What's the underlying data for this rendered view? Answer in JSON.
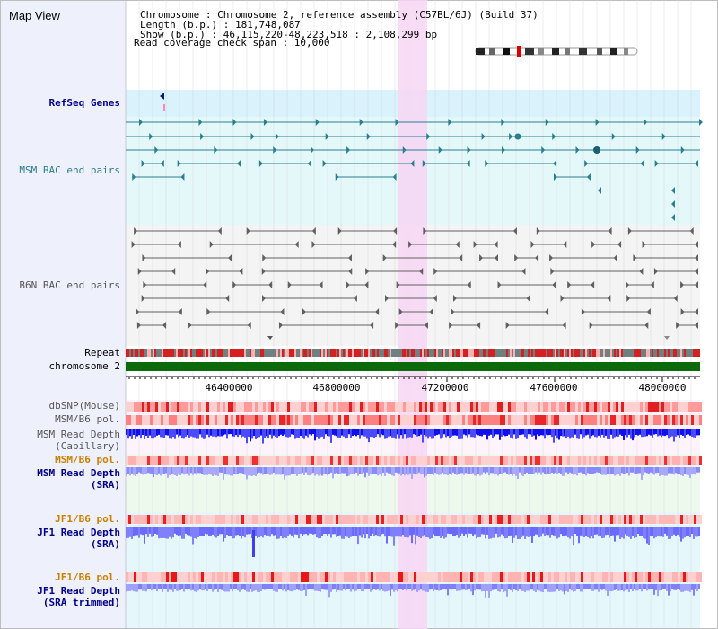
{
  "title": "Map View",
  "header": {
    "chromosome": "Chromosome     : Chromosome 2, reference assembly (C57BL/6J) (Build 37)",
    "length": "Length (b.p.) : 181,748,087",
    "show": "Show (b.p.) : 46,115,220-48,223,518 : 2,108,299 bp",
    "coverage": "Read coverage check span : 10,000"
  },
  "tracks": {
    "refseq": "RefSeq Genes",
    "msm_bac": "MSM BAC end pairs",
    "b6n_bac": "B6N BAC end pairs",
    "repeat": "Repeat",
    "chromosome": "chromosome 2",
    "dbsnp": "dbSNP(Mouse)",
    "msm_b6_pol_1": "MSM/B6 pol.",
    "msm_depth_cap_1": "MSM Read Depth",
    "msm_depth_cap_2": "(Capillary)",
    "msm_b6_pol_2": "MSM/B6 pol.",
    "msm_depth_sra_1": "MSM Read Depth",
    "msm_depth_sra_2": "(SRA)",
    "jf1_b6_pol_1": "JF1/B6 pol.",
    "jf1_depth_sra_1": "JF1 Read Depth",
    "jf1_depth_sra_2": "(SRA)",
    "jf1_b6_pol_2": "JF1/B6 pol.",
    "jf1_depth_trim_1": "JF1 Read Depth",
    "jf1_depth_trim_2": "(SRA trimmed)"
  },
  "axis": {
    "ticks": [
      "46400000",
      "46800000",
      "47200000",
      "47600000",
      "48000000"
    ]
  },
  "colors": {
    "sidebar": "#eef0fb",
    "refseq_bg": "#d9f2fb",
    "msm_bg": "#e4f8fa",
    "b6n_bg": "#f4f4f4",
    "highlight": "#f7d6f3",
    "teal": "#2a7f8f",
    "navy": "#00008b",
    "orange": "#cc8000",
    "chrom_green": "#0b6b0b"
  }
}
